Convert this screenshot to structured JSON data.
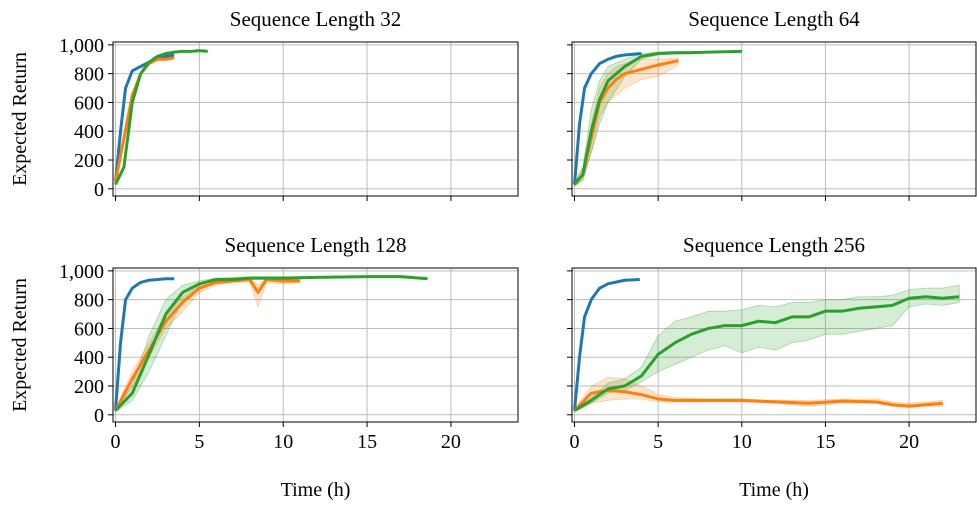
{
  "chart_data": [
    {
      "type": "line",
      "title": "Sequence Length 32",
      "ylabel": "Expected Return",
      "xlim": [
        -0.15,
        24
      ],
      "ylim": [
        -50,
        1020
      ],
      "xticks": [
        0,
        5,
        10,
        15,
        20
      ],
      "yticks": [
        0,
        200,
        400,
        600,
        800,
        {
          "value": 1000,
          "label": "1,000"
        }
      ],
      "show_xticklabels": false,
      "show_yticklabels": true,
      "grid": true,
      "series": [
        {
          "color": "#1f77b4",
          "x": [
            0,
            0.3,
            0.6,
            1,
            1.5,
            2,
            2.5,
            3,
            3.5
          ],
          "values": [
            50,
            400,
            700,
            820,
            850,
            880,
            900,
            920,
            930
          ]
        },
        {
          "color": "#ff7f0e",
          "x": [
            0,
            0.5,
            1,
            1.5,
            2,
            2.5,
            3,
            3.5
          ],
          "values": [
            50,
            350,
            650,
            800,
            870,
            900,
            900,
            910
          ]
        },
        {
          "color": "#2ca02c",
          "x": [
            0,
            0.5,
            1,
            1.5,
            2,
            2.5,
            3,
            3.5,
            4,
            4.5,
            5,
            5.5
          ],
          "values": [
            30,
            150,
            600,
            800,
            880,
            920,
            940,
            950,
            955,
            955,
            960,
            955
          ]
        }
      ]
    },
    {
      "type": "line",
      "title": "Sequence Length 64",
      "xlim": [
        -0.15,
        24
      ],
      "ylim": [
        -50,
        1020
      ],
      "xticks": [
        0,
        5,
        10,
        15,
        20
      ],
      "yticks": [
        0,
        200,
        400,
        600,
        800,
        {
          "value": 1000,
          "label": "1,000"
        }
      ],
      "show_xticklabels": false,
      "show_yticklabels": false,
      "grid": true,
      "series": [
        {
          "color": "#1f77b4",
          "x": [
            0,
            0.3,
            0.6,
            1,
            1.5,
            2,
            2.5,
            3,
            3.5,
            4
          ],
          "values": [
            30,
            450,
            700,
            800,
            870,
            900,
            920,
            930,
            935,
            940
          ]
        },
        {
          "color": "#ff7f0e",
          "x": [
            0,
            0.5,
            1,
            1.5,
            2,
            2.5,
            3,
            4,
            5,
            6.2
          ],
          "values": [
            30,
            100,
            350,
            600,
            700,
            760,
            800,
            830,
            860,
            890
          ],
          "lower": [
            20,
            60,
            250,
            500,
            600,
            650,
            700,
            760,
            780,
            860
          ],
          "upper": [
            40,
            150,
            450,
            700,
            800,
            850,
            870,
            900,
            900,
            910
          ]
        },
        {
          "color": "#2ca02c",
          "x": [
            0,
            0.5,
            1,
            1.5,
            2,
            3,
            4,
            5,
            6,
            7,
            8,
            10
          ],
          "values": [
            30,
            100,
            400,
            620,
            750,
            850,
            920,
            940,
            945,
            945,
            950,
            955
          ],
          "lower": [
            20,
            60,
            250,
            450,
            600,
            780,
            900,
            930,
            935,
            940,
            945,
            950
          ],
          "upper": [
            40,
            150,
            550,
            750,
            850,
            900,
            940,
            950,
            955,
            955,
            955,
            960
          ]
        }
      ]
    },
    {
      "type": "line",
      "title": "Sequence Length 128",
      "ylabel": "Expected Return",
      "xlabel": "Time (h)",
      "xlim": [
        -0.15,
        24
      ],
      "ylim": [
        -50,
        1020
      ],
      "xticks": [
        0,
        5,
        10,
        15,
        20
      ],
      "yticks": [
        0,
        200,
        400,
        600,
        800,
        {
          "value": 1000,
          "label": "1,000"
        }
      ],
      "show_xticklabels": true,
      "show_yticklabels": true,
      "grid": true,
      "series": [
        {
          "color": "#1f77b4",
          "x": [
            0,
            0.3,
            0.6,
            1,
            1.5,
            2,
            3,
            3.5
          ],
          "values": [
            30,
            500,
            800,
            880,
            920,
            935,
            945,
            945
          ]
        },
        {
          "color": "#ff7f0e",
          "x": [
            0,
            1,
            2,
            3,
            4,
            5,
            6,
            7,
            8,
            8.5,
            9,
            10,
            11
          ],
          "values": [
            30,
            250,
            450,
            650,
            780,
            880,
            920,
            930,
            940,
            850,
            940,
            930,
            930
          ],
          "lower": [
            20,
            200,
            400,
            600,
            720,
            850,
            900,
            920,
            920,
            750,
            920,
            910,
            920
          ],
          "upper": [
            40,
            300,
            500,
            700,
            820,
            900,
            940,
            950,
            955,
            900,
            950,
            945,
            940
          ]
        },
        {
          "color": "#2ca02c",
          "x": [
            0,
            1,
            2,
            3,
            4,
            5,
            6,
            7,
            8,
            10,
            12,
            15,
            17,
            18.6
          ],
          "values": [
            30,
            150,
            420,
            700,
            850,
            910,
            940,
            940,
            950,
            950,
            955,
            960,
            960,
            945
          ],
          "lower": [
            20,
            100,
            300,
            550,
            800,
            880,
            920,
            930,
            940,
            945,
            950,
            955,
            955,
            940
          ],
          "upper": [
            40,
            200,
            550,
            800,
            900,
            930,
            950,
            955,
            960,
            960,
            960,
            965,
            965,
            955
          ]
        }
      ]
    },
    {
      "type": "line",
      "title": "Sequence Length 256",
      "xlabel": "Time (h)",
      "xlim": [
        -0.15,
        24
      ],
      "ylim": [
        -50,
        1020
      ],
      "xticks": [
        0,
        5,
        10,
        15,
        20
      ],
      "yticks": [
        0,
        200,
        400,
        600,
        800,
        {
          "value": 1000,
          "label": "1,000"
        }
      ],
      "show_xticklabels": true,
      "show_yticklabels": false,
      "grid": true,
      "series": [
        {
          "color": "#1f77b4",
          "x": [
            0,
            0.3,
            0.6,
            1,
            1.5,
            2,
            3,
            3.9
          ],
          "values": [
            30,
            400,
            680,
            800,
            880,
            910,
            935,
            940
          ]
        },
        {
          "color": "#ff7f0e",
          "x": [
            0,
            1,
            2,
            3,
            4,
            5,
            6,
            8,
            10,
            12,
            14,
            16,
            18,
            19,
            20,
            21,
            22
          ],
          "values": [
            30,
            150,
            170,
            160,
            140,
            110,
            100,
            100,
            100,
            90,
            80,
            95,
            90,
            70,
            60,
            70,
            80
          ],
          "lower": [
            20,
            80,
            100,
            110,
            110,
            90,
            90,
            90,
            90,
            80,
            60,
            80,
            80,
            60,
            50,
            60,
            60
          ],
          "upper": [
            40,
            200,
            260,
            250,
            200,
            140,
            120,
            110,
            110,
            100,
            100,
            110,
            110,
            90,
            80,
            90,
            100
          ]
        },
        {
          "color": "#2ca02c",
          "x": [
            0,
            1,
            2,
            3,
            4,
            5,
            6,
            7,
            8,
            9,
            10,
            11,
            12,
            13,
            14,
            15,
            16,
            17,
            18,
            19,
            20,
            21,
            22,
            23
          ],
          "values": [
            30,
            100,
            180,
            200,
            270,
            420,
            500,
            560,
            600,
            620,
            620,
            650,
            640,
            680,
            680,
            720,
            720,
            740,
            750,
            760,
            810,
            820,
            810,
            820
          ],
          "lower": [
            20,
            80,
            150,
            170,
            230,
            300,
            350,
            400,
            450,
            480,
            430,
            470,
            450,
            500,
            520,
            560,
            560,
            580,
            600,
            620,
            750,
            770,
            760,
            780
          ],
          "upper": [
            40,
            120,
            220,
            250,
            330,
            550,
            650,
            680,
            720,
            720,
            730,
            760,
            750,
            780,
            780,
            800,
            800,
            820,
            820,
            830,
            870,
            880,
            880,
            900
          ]
        }
      ]
    }
  ]
}
